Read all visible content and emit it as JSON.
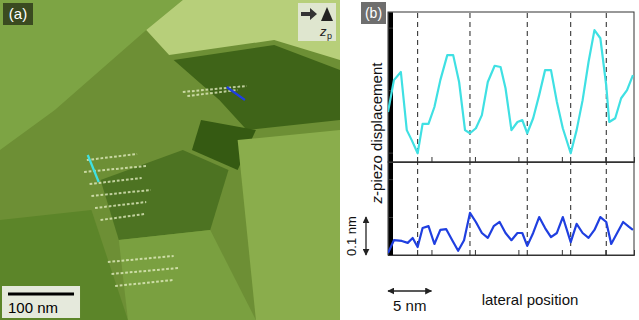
{
  "panel_a": {
    "label": "(a)",
    "scalebar": {
      "value": 100,
      "label": "100 nm"
    },
    "image_width_nm": 515,
    "icon_label": "z",
    "icon_subscript": "p"
  },
  "panel_b": {
    "label": "(b)",
    "ylabel": "z-piezo displacement",
    "xlabel": "lateral position",
    "scalebar_x": {
      "value": 5,
      "label": "5 nm"
    },
    "scalebar_y": {
      "value": 0.1,
      "label": "0.1 nm"
    }
  },
  "chart_data": [
    {
      "type": "line",
      "color": "#3fe0e3",
      "x": [
        0,
        0.68,
        1.48,
        2.16,
        2.73,
        3.41,
        3.98,
        4.66,
        5.34,
        6.02,
        6.82,
        7.5,
        8.18,
        8.86,
        9.43,
        10.11,
        10.8,
        11.48,
        12.27,
        12.95,
        13.52,
        14.2,
        14.89,
        15.45,
        16.02,
        16.7,
        17.39,
        18.07,
        18.75,
        19.43,
        20.11,
        21.02,
        21.7,
        22.39,
        23.07,
        23.75,
        24.43,
        25.11,
        25.45,
        26.14,
        26.82,
        27.5,
        28.18
      ],
      "values": [
        0.065,
        0.116,
        0.129,
        0.036,
        0.02,
        -0.001,
        0.046,
        0.046,
        0.073,
        0.116,
        0.156,
        0.156,
        0.113,
        0.036,
        0.031,
        0.039,
        0.06,
        0.113,
        0.139,
        0.137,
        0.103,
        0.036,
        0.049,
        0.052,
        0.031,
        0.055,
        0.092,
        0.132,
        0.132,
        0.081,
        0.039,
        -0.001,
        0.036,
        0.084,
        0.145,
        0.196,
        0.183,
        0.107,
        0.049,
        0.055,
        0.087,
        0.1,
        0.124
      ],
      "xlim": [
        0,
        28.3
      ],
      "ylim": [
        -0.015,
        0.225
      ],
      "xticks": [
        0,
        5,
        10,
        15,
        20,
        25
      ],
      "yticks": [
        0,
        0.1,
        0.2
      ],
      "tick_labels": false,
      "vlines": [
        3.41,
        9.43,
        16.02,
        21.02,
        25.11
      ]
    },
    {
      "type": "line",
      "color": "#1f3fe0",
      "x": [
        0,
        0.68,
        1.59,
        2.27,
        2.84,
        3.41,
        3.98,
        4.66,
        5.34,
        6.02,
        6.7,
        7.39,
        8.07,
        8.75,
        9.43,
        10.11,
        10.8,
        11.48,
        12.16,
        12.84,
        13.52,
        14.2,
        14.89,
        15.45,
        16.02,
        16.7,
        17.39,
        18.07,
        18.75,
        19.43,
        20.11,
        21.02,
        21.7,
        22.39,
        23.07,
        23.75,
        24.43,
        25.11,
        25.68,
        26.36,
        27.05,
        27.73,
        28.18
      ],
      "values": [
        0.005,
        0.039,
        0.037,
        0.032,
        0.045,
        0.021,
        0.071,
        0.076,
        0.029,
        0.066,
        0.068,
        0.039,
        0.011,
        0.039,
        0.111,
        0.087,
        0.058,
        0.045,
        0.076,
        0.087,
        0.058,
        0.039,
        0.058,
        0.058,
        0.024,
        0.058,
        0.1,
        0.071,
        0.047,
        0.058,
        0.1,
        0.034,
        0.082,
        0.058,
        0.045,
        0.066,
        0.1,
        0.087,
        0.029,
        0.058,
        0.087,
        0.074,
        0.066
      ],
      "xlim": [
        0,
        28.3
      ],
      "ylim": [
        0,
        0.245
      ],
      "xticks": [
        0,
        5,
        10,
        15,
        20,
        25
      ],
      "yticks": [
        0,
        0.1,
        0.2
      ],
      "tick_labels": false,
      "vlines": [
        3.41,
        9.43,
        16.02,
        21.02,
        25.11
      ]
    }
  ]
}
